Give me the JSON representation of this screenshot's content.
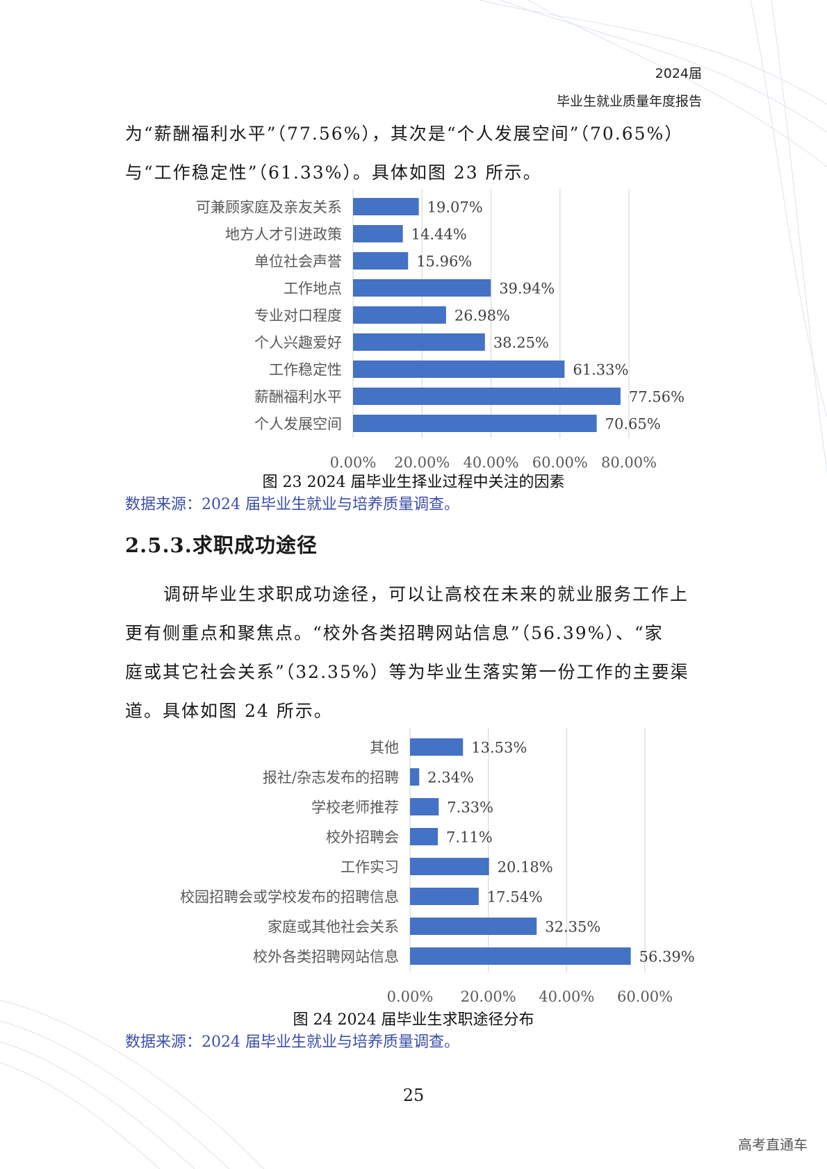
{
  "header": {
    "line1": "2024届",
    "line2": "毕业生就业质量年度报告"
  },
  "intro_paragraph": {
    "lines": [
      "为“薪酬福利水平”（77.56%），其次是“个人发展空间”（70.65%）",
      "与“工作稳定性”（61.33%）。具体如图 23 所示。"
    ]
  },
  "chart1_caption": "图 23 2024 届毕业生择业过程中关注的因素",
  "chart1_source": "数据来源：2024 届毕业生就业与培养质量调查。",
  "section_heading": "2.5.3.求职成功途径",
  "section_paragraph": {
    "lines": [
      "调研毕业生求职成功途径，可以让高校在未来的就业服务工作上",
      "更有侧重点和聚焦点。“校外各类招聘网站信息”（56.39%）、“家",
      "庭或其它社会关系”（32.35%）等为毕业生落实第一份工作的主要渠",
      "道。具体如图 24 所示。"
    ]
  },
  "chart2_caption": "图 24 2024 届毕业生求职途径分布",
  "chart2_source": "数据来源：2024 届毕业生就业与培养质量调查。",
  "page_number": "25",
  "watermark": "高考直通车",
  "colors": {
    "bar": "#4472c4",
    "source_text": "#3b4ea8",
    "grid": "#d9d9d9"
  },
  "chart_data": [
    {
      "type": "bar",
      "orientation": "horizontal",
      "categories": [
        "可兼顾家庭及亲友关系",
        "地方人才引进政策",
        "单位社会声誉",
        "工作地点",
        "专业对口程度",
        "个人兴趣爱好",
        "工作稳定性",
        "薪酬福利水平",
        "个人发展空间"
      ],
      "values": [
        19.07,
        14.44,
        15.96,
        39.94,
        26.98,
        38.25,
        61.33,
        77.56,
        70.65
      ],
      "value_labels": [
        "19.07%",
        "14.44%",
        "15.96%",
        "39.94%",
        "26.98%",
        "38.25%",
        "61.33%",
        "77.56%",
        "70.65%"
      ],
      "x_ticks": [
        "0.00%",
        "20.00%",
        "40.00%",
        "60.00%",
        "80.00%"
      ],
      "xlim": [
        0,
        80
      ],
      "grid": true
    },
    {
      "type": "bar",
      "orientation": "horizontal",
      "categories": [
        "其他",
        "报社/杂志发布的招聘",
        "学校老师推荐",
        "校外招聘会",
        "工作实习",
        "校园招聘会或学校发布的招聘信息",
        "家庭或其他社会关系",
        "校外各类招聘网站信息"
      ],
      "values": [
        13.53,
        2.34,
        7.33,
        7.11,
        20.18,
        17.54,
        32.35,
        56.39
      ],
      "value_labels": [
        "13.53%",
        "2.34%",
        "7.33%",
        "7.11%",
        "20.18%",
        "17.54%",
        "32.35%",
        "56.39%"
      ],
      "x_ticks": [
        "0.00%",
        "20.00%",
        "40.00%",
        "60.00%"
      ],
      "xlim": [
        0,
        60
      ],
      "grid": true
    }
  ]
}
